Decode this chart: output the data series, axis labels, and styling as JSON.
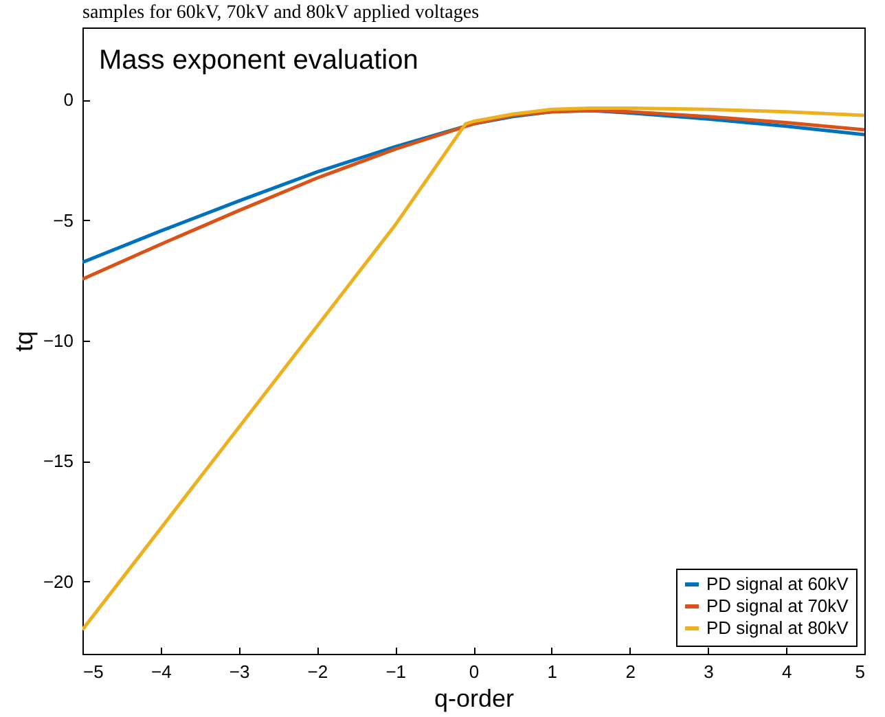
{
  "chart_data": {
    "type": "line",
    "title": "samples for 60kV, 70kV and 80kV applied voltages",
    "annotations": [
      "Mass exponent evaluation"
    ],
    "xlabel": "q-order",
    "ylabel": "tq",
    "x": [
      -5,
      -4,
      -3,
      -2,
      -1,
      0,
      0.5,
      1,
      1.5,
      2,
      3,
      4,
      5
    ],
    "series": [
      {
        "name": "PD signal at 60kV",
        "color": "#0072bd",
        "values": [
          -6.75,
          -5.45,
          -4.2,
          -3.0,
          -1.95,
          -1.0,
          -0.7,
          -0.5,
          -0.45,
          -0.55,
          -0.8,
          -1.1,
          -1.45
        ]
      },
      {
        "name": "PD signal at 70kV",
        "color": "#d95319",
        "values": [
          -7.45,
          -6.0,
          -4.6,
          -3.25,
          -2.05,
          -1.0,
          -0.65,
          -0.5,
          -0.45,
          -0.5,
          -0.7,
          -0.95,
          -1.25
        ]
      },
      {
        "name": "PD signal at 80kV",
        "color": "#edb120",
        "x": [
          -5,
          -4,
          -3,
          -2,
          -1,
          -0.1,
          0,
          0.5,
          1,
          1.5,
          2,
          3,
          4,
          5
        ],
        "values": [
          -22.0,
          -17.8,
          -13.6,
          -9.4,
          -5.2,
          -1.0,
          -0.9,
          -0.6,
          -0.4,
          -0.35,
          -0.35,
          -0.4,
          -0.5,
          -0.65
        ]
      }
    ],
    "xlim": [
      -5,
      5
    ],
    "xticks": [
      -5,
      -4,
      -3,
      -2,
      -1,
      0,
      1,
      2,
      3,
      4,
      5
    ],
    "ylim": [
      -23,
      3
    ],
    "yticks": [
      -20,
      -15,
      -10,
      -5,
      0
    ],
    "grid": false,
    "legend": "bottom right"
  }
}
